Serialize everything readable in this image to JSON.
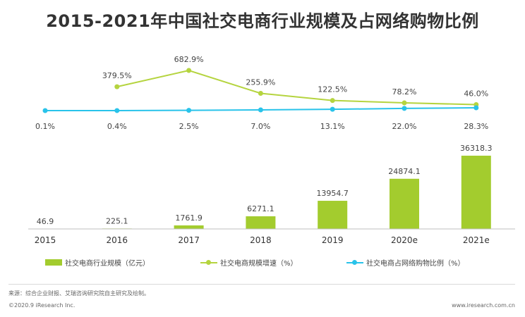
{
  "title": "2015-2021年中国社交电商行业规模及占网络购物比例",
  "chart_data": {
    "type": "bar",
    "categories": [
      "2015",
      "2016",
      "2017",
      "2018",
      "2019",
      "2020e",
      "2021e"
    ],
    "series": [
      {
        "name": "社交电商行业规模（亿元）",
        "type": "bar",
        "values": [
          46.9,
          225.1,
          1761.9,
          6271.1,
          13954.7,
          24874.1,
          36318.3
        ],
        "labels": [
          "46.9",
          "225.1",
          "1761.9",
          "6271.1",
          "13954.7",
          "24874.1",
          "36318.3"
        ],
        "color": "#a3cc2e"
      },
      {
        "name": "社交电商规模增速（%）",
        "type": "line",
        "values": [
          null,
          379.5,
          682.9,
          255.9,
          122.5,
          78.2,
          46.0
        ],
        "labels": [
          "",
          "379.5%",
          "682.9%",
          "255.9%",
          "122.5%",
          "78.2%",
          "46.0%"
        ],
        "color": "#b5d43f"
      },
      {
        "name": "社交电商占网络购物比例（%）",
        "type": "line",
        "values": [
          0.1,
          0.4,
          2.5,
          7.0,
          13.1,
          22.0,
          28.3
        ],
        "labels": [
          "0.1%",
          "0.4%",
          "2.5%",
          "7.0%",
          "13.1%",
          "22.0%",
          "28.3%"
        ],
        "color": "#29c3ea"
      }
    ],
    "legend_position": "bottom",
    "grid": false
  },
  "source": "来源：综合企业财报、艾瑞咨询研究院自主研究及绘制。",
  "copyright": "©2020.9 iResearch Inc.",
  "website": "www.iresearch.com.cn"
}
